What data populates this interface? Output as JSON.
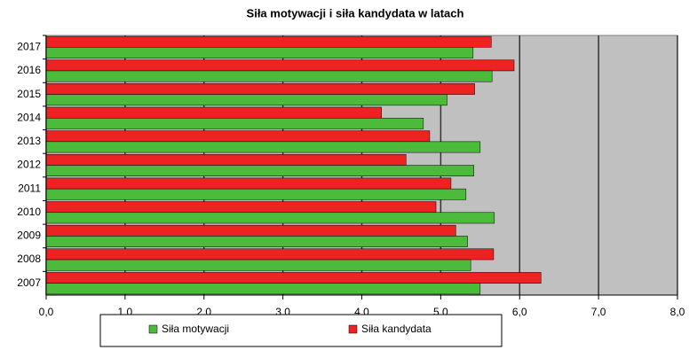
{
  "chart_data": {
    "type": "bar",
    "orientation": "horizontal",
    "title": "Siła motywacji i siła kandydata w latach",
    "categories": [
      "2007",
      "2008",
      "2009",
      "2010",
      "2011",
      "2012",
      "2013",
      "2014",
      "2015",
      "2016",
      "2017"
    ],
    "series": [
      {
        "name": "Siła motywacji",
        "color": "#4cbb3c",
        "values": [
          5.5,
          5.38,
          5.34,
          5.68,
          5.32,
          5.42,
          5.5,
          4.78,
          5.08,
          5.65,
          5.41
        ]
      },
      {
        "name": "Siła kandydata",
        "color": "#ee2222",
        "values": [
          6.27,
          5.67,
          5.19,
          4.94,
          5.13,
          4.56,
          4.86,
          4.25,
          5.43,
          5.93,
          5.64
        ]
      }
    ],
    "xlim": [
      0,
      8
    ],
    "xticks": [
      {
        "value": 0,
        "label": "0,0"
      },
      {
        "value": 1,
        "label": "1,0"
      },
      {
        "value": 2,
        "label": "2,0"
      },
      {
        "value": 3,
        "label": "3,0"
      },
      {
        "value": 4,
        "label": "4,0"
      },
      {
        "value": 5,
        "label": "5,0"
      },
      {
        "value": 6,
        "label": "6,0"
      },
      {
        "value": 7,
        "label": "7,0"
      },
      {
        "value": 8,
        "label": "8,0"
      }
    ],
    "grid": true,
    "legend": "bottom"
  }
}
